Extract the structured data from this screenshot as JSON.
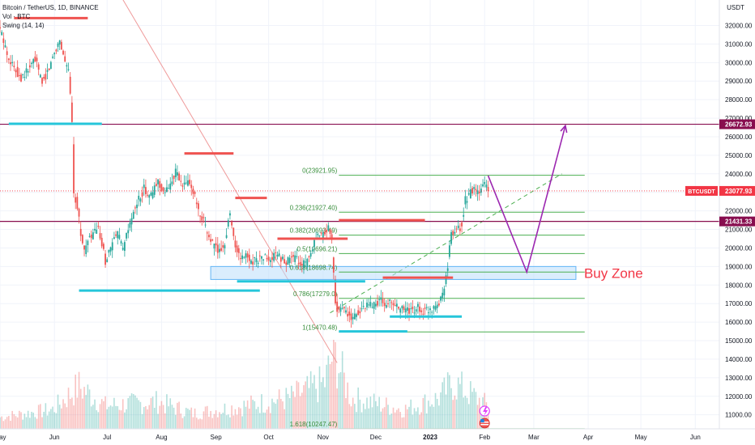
{
  "legend": {
    "symbol": "Bitcoin / TetherUS, 1D, BINANCE",
    "volume": "Vol · BTC",
    "indicator": "Swing (14, 14)"
  },
  "chart_data": {
    "type": "candlestick",
    "currency_label": "USDT",
    "y_range": [
      10000,
      33500
    ],
    "y_ticks": [
      11000,
      12000,
      13000,
      14000,
      15000,
      16000,
      17000,
      18000,
      19000,
      20000,
      21000,
      22000,
      23000,
      24000,
      25000,
      26000,
      27000,
      28000,
      29000,
      30000,
      31000,
      32000
    ],
    "x_ticks": [
      {
        "label": "May",
        "t": 0
      },
      {
        "label": "Jun",
        "t": 31
      },
      {
        "label": "Jul",
        "t": 61
      },
      {
        "label": "Aug",
        "t": 92
      },
      {
        "label": "Sep",
        "t": 123
      },
      {
        "label": "Oct",
        "t": 153
      },
      {
        "label": "Nov",
        "t": 184
      },
      {
        "label": "Dec",
        "t": 214
      },
      {
        "label": "2023",
        "t": 245
      },
      {
        "label": "Feb",
        "t": 276
      },
      {
        "label": "Mar",
        "t": 304
      },
      {
        "label": "Apr",
        "t": 335
      },
      {
        "label": "May",
        "t": 365
      },
      {
        "label": "Jun",
        "t": 396
      }
    ],
    "price_anchors": [
      [
        0,
        31800
      ],
      [
        4,
        30500
      ],
      [
        8,
        29700
      ],
      [
        12,
        29200
      ],
      [
        16,
        29600
      ],
      [
        20,
        30200
      ],
      [
        24,
        28900
      ],
      [
        28,
        29700
      ],
      [
        31,
        30600
      ],
      [
        34,
        31200
      ],
      [
        37,
        30100
      ],
      [
        39,
        29500
      ],
      [
        41,
        27000
      ],
      [
        42,
        23000
      ],
      [
        44,
        22300
      ],
      [
        46,
        20800
      ],
      [
        48,
        19800
      ],
      [
        50,
        20300
      ],
      [
        53,
        20800
      ],
      [
        56,
        21000
      ],
      [
        60,
        19300
      ],
      [
        63,
        20000
      ],
      [
        67,
        20800
      ],
      [
        70,
        19900
      ],
      [
        74,
        21300
      ],
      [
        78,
        22400
      ],
      [
        82,
        23200
      ],
      [
        86,
        22800
      ],
      [
        90,
        23600
      ],
      [
        94,
        22900
      ],
      [
        97,
        23500
      ],
      [
        100,
        24100
      ],
      [
        104,
        23300
      ],
      [
        108,
        23600
      ],
      [
        112,
        22400
      ],
      [
        114,
        21500
      ],
      [
        116,
        21400
      ],
      [
        118,
        20800
      ],
      [
        122,
        20100
      ],
      [
        125,
        19800
      ],
      [
        128,
        20300
      ],
      [
        131,
        21900
      ],
      [
        134,
        20100
      ],
      [
        137,
        19400
      ],
      [
        140,
        19600
      ],
      [
        143,
        19300
      ],
      [
        147,
        19400
      ],
      [
        151,
        19500
      ],
      [
        154,
        19300
      ],
      [
        158,
        19700
      ],
      [
        162,
        19200
      ],
      [
        166,
        19500
      ],
      [
        170,
        19300
      ],
      [
        174,
        19100
      ],
      [
        177,
        19600
      ],
      [
        180,
        20500
      ],
      [
        184,
        20700
      ],
      [
        187,
        21100
      ],
      [
        189,
        20400
      ],
      [
        190,
        18700
      ],
      [
        191,
        17200
      ],
      [
        192,
        16600
      ],
      [
        195,
        16800
      ],
      [
        198,
        16400
      ],
      [
        201,
        16200
      ],
      [
        204,
        16500
      ],
      [
        207,
        16800
      ],
      [
        210,
        16900
      ],
      [
        214,
        17000
      ],
      [
        217,
        17200
      ],
      [
        220,
        16900
      ],
      [
        223,
        17100
      ],
      [
        226,
        16800
      ],
      [
        229,
        16700
      ],
      [
        232,
        16600
      ],
      [
        235,
        16600
      ],
      [
        238,
        16800
      ],
      [
        241,
        16600
      ],
      [
        245,
        16700
      ],
      [
        248,
        16900
      ],
      [
        251,
        17200
      ],
      [
        253,
        17900
      ],
      [
        255,
        19000
      ],
      [
        257,
        20900
      ],
      [
        259,
        20800
      ],
      [
        261,
        21000
      ],
      [
        263,
        21200
      ],
      [
        265,
        22600
      ],
      [
        268,
        23000
      ],
      [
        271,
        23100
      ],
      [
        273,
        22800
      ],
      [
        275,
        23500
      ],
      [
        277,
        23300
      ],
      [
        278,
        23080
      ]
    ],
    "volume_anchors": [
      [
        0,
        0.15
      ],
      [
        30,
        0.25
      ],
      [
        45,
        0.55
      ],
      [
        60,
        0.3
      ],
      [
        90,
        0.35
      ],
      [
        110,
        0.2
      ],
      [
        140,
        0.3
      ],
      [
        165,
        0.4
      ],
      [
        185,
        0.6
      ],
      [
        190,
        1.0
      ],
      [
        200,
        0.4
      ],
      [
        230,
        0.25
      ],
      [
        250,
        0.4
      ],
      [
        258,
        0.6
      ],
      [
        268,
        0.45
      ],
      [
        278,
        0.3
      ]
    ],
    "fibonacci": [
      {
        "level": "0(23921.95)",
        "price": 23922
      },
      {
        "level": "0.236(21927.40)",
        "price": 21927
      },
      {
        "level": "0.382(20693.49)",
        "price": 20693
      },
      {
        "level": "0.5(19696.21)",
        "price": 19696
      },
      {
        "level": "0.618(18698.74)",
        "price": 18699
      },
      {
        "level": "0.786(17279.0)",
        "price": 17279
      },
      {
        "level": "1(15470.48)",
        "price": 15470
      },
      {
        "level": "1.618(10247.47)",
        "price": 10247
      }
    ],
    "horizontal_lines": [
      {
        "price": 26672.93,
        "label": "26672.93"
      },
      {
        "price": 21431.33,
        "label": "21431.33"
      }
    ],
    "current_price": {
      "symbol": "BTCUSDT",
      "price": 23077.93,
      "label": "23077.93"
    },
    "swing_highs": [
      {
        "price": 32400,
        "t0": 8,
        "t1": 50
      },
      {
        "price": 25100,
        "t0": 105,
        "t1": 133
      },
      {
        "price": 22700,
        "t0": 134,
        "t1": 152
      },
      {
        "price": 21500,
        "t0": 193,
        "t1": 242
      },
      {
        "price": 20500,
        "t0": 158,
        "t1": 198
      },
      {
        "price": 18400,
        "t0": 218,
        "t1": 258
      }
    ],
    "swing_lows": [
      {
        "price": 26700,
        "t0": 5,
        "t1": 58
      },
      {
        "price": 17700,
        "t0": 45,
        "t1": 148
      },
      {
        "price": 18200,
        "t0": 135,
        "t1": 208
      },
      {
        "price": 16300,
        "t0": 222,
        "t1": 263
      },
      {
        "price": 15500,
        "t0": 193,
        "t1": 232
      }
    ],
    "buy_zone": {
      "label": "Buy Zone",
      "price_top": 19000,
      "price_bottom": 18300,
      "t0": 120,
      "t1": 328
    },
    "projection": [
      [
        278,
        23900
      ],
      [
        300,
        18700
      ],
      [
        322,
        26600
      ]
    ],
    "trendline": {
      "t0": 60,
      "p0": 35000,
      "t1": 192,
      "p1": 13800
    },
    "dashed_line": {
      "t0": 188,
      "p0": 16500,
      "t1": 320,
      "p1": 24000
    },
    "colors": {
      "up": "#26a69a",
      "down": "#ef5350",
      "swing_high": "#ef5350",
      "swing_low": "#26c6da",
      "fib": "#4caf50",
      "fib_text": "#388e3c",
      "hline": "#880e4f",
      "projection": "#9c27b0",
      "buy_zone_fill": "#bbdefb",
      "buy_zone_stroke": "#64b5f6",
      "buy_zone_text": "#f23645",
      "trendline": "#ef9a9a",
      "dashed": "#4caf50",
      "price_box": "#f23645",
      "hline_box": "#880e4f"
    }
  }
}
